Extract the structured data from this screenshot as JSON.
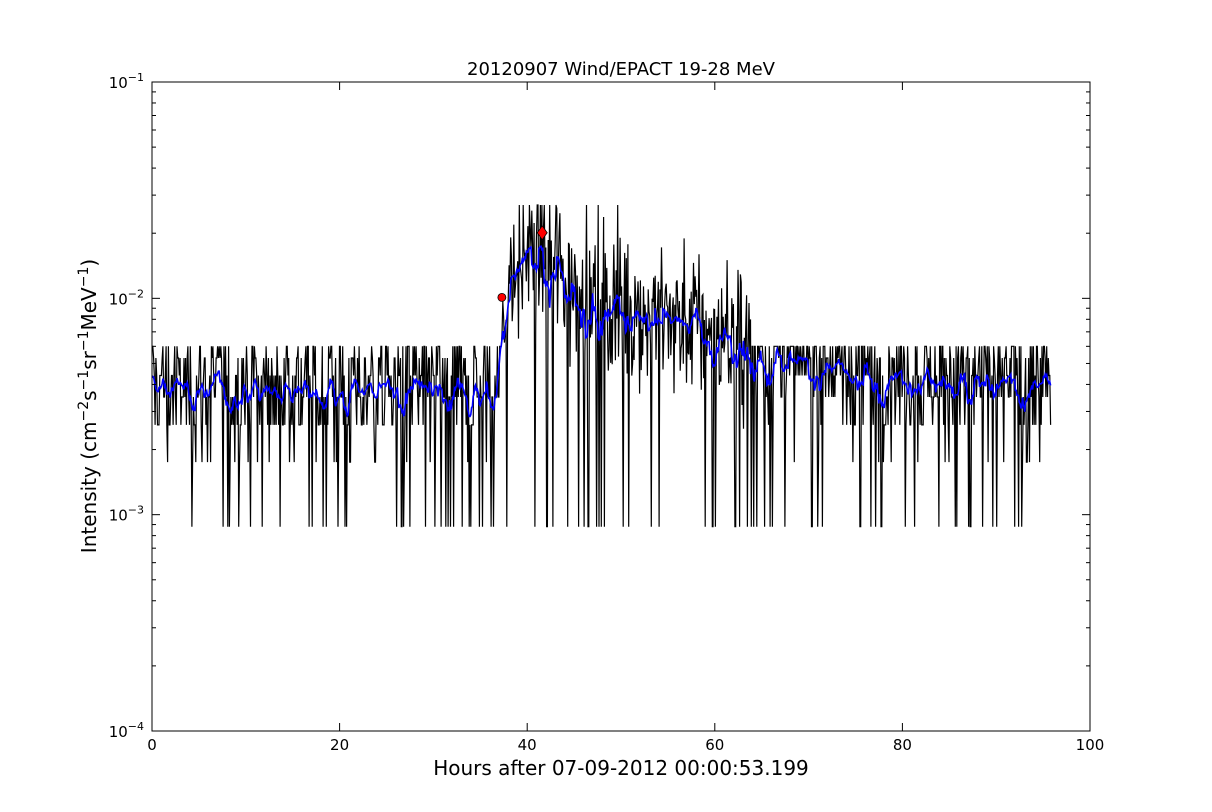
{
  "chart_data": {
    "type": "line",
    "title": "20120907 Wind/EPACT 19-28 MeV",
    "xlabel": "Hours after 07-09-2012 00:00:53.199",
    "ylabel": {
      "prefix": "Intensity (cm",
      "sup1": "−2",
      "mid1": "s",
      "sup2": "−1",
      "mid2": "sr",
      "sup3": "−1",
      "mid3": "MeV",
      "sup4": "−1",
      "suffix": ")"
    },
    "xlim": [
      0,
      100
    ],
    "ylim": [
      0.0001,
      0.1
    ],
    "yscale": "log",
    "grid": false,
    "x_ticks": [
      {
        "value": 0,
        "label": "0"
      },
      {
        "value": 20,
        "label": "20"
      },
      {
        "value": 40,
        "label": "40"
      },
      {
        "value": 60,
        "label": "60"
      },
      {
        "value": 80,
        "label": "80"
      },
      {
        "value": 100,
        "label": "100"
      }
    ],
    "y_ticks": [
      {
        "value": 0.0001,
        "base": "10",
        "exp": "−4"
      },
      {
        "value": 0.001,
        "base": "10",
        "exp": "−3"
      },
      {
        "value": 0.01,
        "base": "10",
        "exp": "−2"
      },
      {
        "value": 0.1,
        "base": "10",
        "exp": "−1"
      }
    ],
    "series": [
      {
        "color": "#000000",
        "style": "raw",
        "profile": [
          [
            0,
            0.0039
          ],
          [
            36.8,
            0.0039
          ],
          [
            37.2,
            0.006
          ],
          [
            38.0,
            0.0115
          ],
          [
            39.0,
            0.014
          ],
          [
            40.0,
            0.016
          ],
          [
            41.5,
            0.0175
          ],
          [
            43.0,
            0.014
          ],
          [
            45.0,
            0.0115
          ],
          [
            50.0,
            0.0095
          ],
          [
            55.0,
            0.0082
          ],
          [
            60.0,
            0.007
          ],
          [
            65.0,
            0.006
          ],
          [
            70.0,
            0.0052
          ],
          [
            80.0,
            0.0046
          ],
          [
            90.0,
            0.0041
          ],
          [
            95.8,
            0.004
          ]
        ],
        "floor": 0.00088,
        "levels": [
          0.00088,
          0.00175,
          0.0026,
          0.0035,
          0.0044,
          0.0053,
          0.006
        ]
      },
      {
        "color": "#0000ff",
        "style": "smoothed",
        "profile": [
          [
            0,
            0.0039
          ],
          [
            36.8,
            0.0039
          ],
          [
            37.2,
            0.006
          ],
          [
            38.0,
            0.0115
          ],
          [
            39.0,
            0.014
          ],
          [
            40.0,
            0.016
          ],
          [
            41.5,
            0.0175
          ],
          [
            43.0,
            0.014
          ],
          [
            45.0,
            0.0115
          ],
          [
            50.0,
            0.0095
          ],
          [
            55.0,
            0.0082
          ],
          [
            60.0,
            0.007
          ],
          [
            65.0,
            0.006
          ],
          [
            70.0,
            0.0052
          ],
          [
            80.0,
            0.0046
          ],
          [
            90.0,
            0.0041
          ],
          [
            95.8,
            0.004
          ]
        ]
      }
    ],
    "markers": [
      {
        "x": 37.3,
        "y": 0.0101,
        "color": "#ff0000",
        "shape": "circle"
      },
      {
        "x": 41.6,
        "y": 0.0201,
        "color": "#ff0000",
        "shape": "diamond"
      }
    ]
  }
}
